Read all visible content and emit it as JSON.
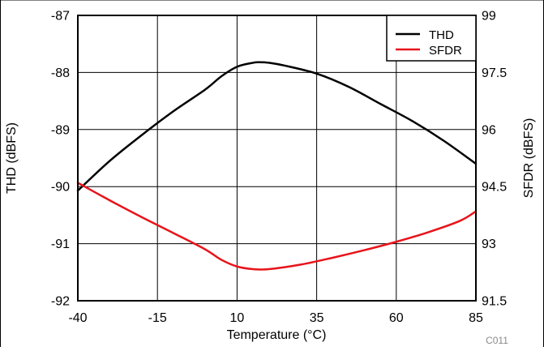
{
  "chart_data": {
    "type": "line",
    "xlabel": "Temperature (°C)",
    "ylabel_left": "THD (dBFS)",
    "ylabel_right": "SFDR (dBFS)",
    "code": "C011",
    "xlim": [
      -40,
      85
    ],
    "xticks": [
      -40,
      -15,
      10,
      35,
      60,
      85
    ],
    "ylim_left": [
      -92,
      -87
    ],
    "yticks_left": [
      -92,
      -91,
      -90,
      -89,
      -88,
      -87
    ],
    "ylim_right": [
      91.5,
      99
    ],
    "yticks_right": [
      "91.5",
      "93",
      "94.5",
      "96",
      "97.5",
      "99"
    ],
    "yticks_right_values": [
      91.5,
      93,
      94.5,
      96,
      97.5,
      99
    ],
    "grid": true,
    "legend_position": "top-right",
    "series": [
      {
        "name": "THD",
        "axis": "left",
        "color": "#000000",
        "x": [
          -40,
          -30,
          -20,
          -10,
          0,
          5,
          10,
          15,
          17,
          20,
          25,
          35,
          45,
          55,
          65,
          75,
          85
        ],
        "y": [
          -90.07,
          -89.55,
          -89.1,
          -88.68,
          -88.3,
          -88.07,
          -87.9,
          -87.83,
          -87.82,
          -87.83,
          -87.88,
          -88.02,
          -88.25,
          -88.55,
          -88.85,
          -89.2,
          -89.6
        ]
      },
      {
        "name": "SFDR",
        "axis": "right",
        "color": "#e8141b",
        "x": [
          -40,
          -30,
          -20,
          -10,
          0,
          5,
          10,
          15,
          20,
          30,
          40,
          50,
          60,
          70,
          80,
          85
        ],
        "y": [
          94.6,
          94.14,
          93.7,
          93.28,
          92.85,
          92.58,
          92.4,
          92.33,
          92.33,
          92.45,
          92.63,
          92.83,
          93.05,
          93.3,
          93.6,
          93.85
        ]
      }
    ]
  }
}
